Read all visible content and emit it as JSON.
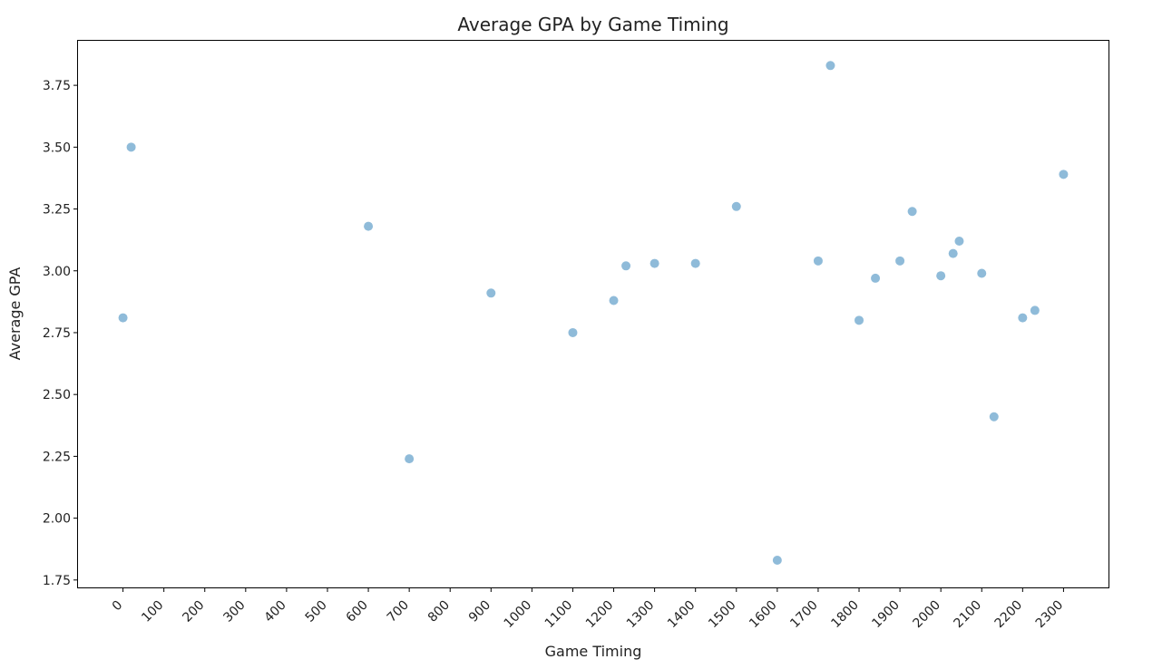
{
  "chart_data": {
    "type": "scatter",
    "title": "Average GPA by Game Timing",
    "xlabel": "Game Timing",
    "ylabel": "Average GPA",
    "xlim": [
      -110,
      2410
    ],
    "ylim": [
      1.72,
      3.93
    ],
    "x_ticks": [
      0,
      100,
      200,
      300,
      400,
      500,
      600,
      700,
      800,
      900,
      1000,
      1100,
      1200,
      1300,
      1400,
      1500,
      1600,
      1700,
      1800,
      1900,
      2000,
      2100,
      2200,
      2300
    ],
    "x_tick_labels": [
      "0",
      "100",
      "200",
      "300",
      "400",
      "500",
      "600",
      "700",
      "800",
      "900",
      "1000",
      "1100",
      "1200",
      "1300",
      "1400",
      "1500",
      "1600",
      "1700",
      "1800",
      "1900",
      "2000",
      "2100",
      "2200",
      "2300"
    ],
    "y_ticks": [
      1.75,
      2.0,
      2.25,
      2.5,
      2.75,
      3.0,
      3.25,
      3.5,
      3.75
    ],
    "y_tick_labels": [
      "1.75",
      "2.00",
      "2.25",
      "2.50",
      "2.75",
      "3.00",
      "3.25",
      "3.50",
      "3.75"
    ],
    "grid": false,
    "point_color": "#1f77b4",
    "point_opacity": 0.5,
    "points": [
      {
        "x": 0,
        "y": 2.81
      },
      {
        "x": 20,
        "y": 3.5
      },
      {
        "x": 600,
        "y": 3.18
      },
      {
        "x": 700,
        "y": 2.24
      },
      {
        "x": 900,
        "y": 2.91
      },
      {
        "x": 1100,
        "y": 2.75
      },
      {
        "x": 1200,
        "y": 2.88
      },
      {
        "x": 1230,
        "y": 3.02
      },
      {
        "x": 1300,
        "y": 3.03
      },
      {
        "x": 1400,
        "y": 3.03
      },
      {
        "x": 1500,
        "y": 3.26
      },
      {
        "x": 1600,
        "y": 1.83
      },
      {
        "x": 1700,
        "y": 3.04
      },
      {
        "x": 1730,
        "y": 3.83
      },
      {
        "x": 1800,
        "y": 2.8
      },
      {
        "x": 1840,
        "y": 2.97
      },
      {
        "x": 1900,
        "y": 3.04
      },
      {
        "x": 1930,
        "y": 3.24
      },
      {
        "x": 2000,
        "y": 2.98
      },
      {
        "x": 2030,
        "y": 3.07
      },
      {
        "x": 2045,
        "y": 3.12
      },
      {
        "x": 2100,
        "y": 2.99
      },
      {
        "x": 2130,
        "y": 2.41
      },
      {
        "x": 2200,
        "y": 2.81
      },
      {
        "x": 2230,
        "y": 2.84
      },
      {
        "x": 2300,
        "y": 3.39
      }
    ]
  }
}
